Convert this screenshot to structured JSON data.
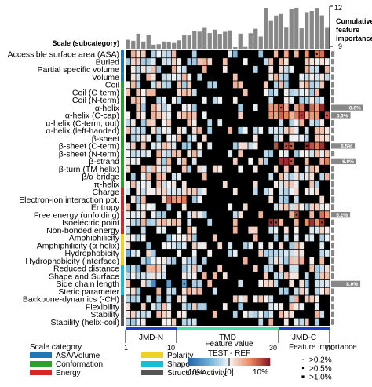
{
  "chart_data": {
    "type": "heatmap",
    "row_header": "Scale (subcategory)",
    "rows": [
      {
        "label": "Accessible surface area (ASA)",
        "cat": 0,
        "imp": 0.9
      },
      {
        "label": "Buried",
        "cat": 0,
        "imp": 0.5
      },
      {
        "label": "Partial specific volume",
        "cat": 0,
        "imp": 0.4
      },
      {
        "label": "Volume",
        "cat": 0,
        "imp": 0.7
      },
      {
        "label": "Coil",
        "cat": 1,
        "imp": 0.8
      },
      {
        "label": "Coil (C-term)",
        "cat": 1,
        "imp": 0.4
      },
      {
        "label": "Coil (N-term)",
        "cat": 1,
        "imp": 0.4
      },
      {
        "label": "α-helix",
        "cat": 1,
        "imp": 8.8,
        "pct": "8.8%"
      },
      {
        "label": "α-helix (C-cap)",
        "cat": 1,
        "imp": 5.3,
        "pct": "5.3%"
      },
      {
        "label": "α-helix (C-term, out)",
        "cat": 1,
        "imp": 0.4
      },
      {
        "label": "α-helix (left-handed)",
        "cat": 1,
        "imp": 0.3
      },
      {
        "label": "β-sheet",
        "cat": 1,
        "imp": 0.3
      },
      {
        "label": "β-sheet (C-term)",
        "cat": 1,
        "imp": 6.5,
        "pct": "6.5%"
      },
      {
        "label": "β-sheet (N-term)",
        "cat": 1,
        "imp": 0.9
      },
      {
        "label": "β-strand",
        "cat": 1,
        "imp": 6.9,
        "pct": "6.9%"
      },
      {
        "label": "β-turn (TM helix)",
        "cat": 1,
        "imp": 0.7
      },
      {
        "label": "β/α-bridge",
        "cat": 1,
        "imp": 0.3
      },
      {
        "label": "π-helix",
        "cat": 1,
        "imp": 0.4
      },
      {
        "label": "Charge",
        "cat": 2,
        "imp": 0.5
      },
      {
        "label": "Electron-ion interaction pot.",
        "cat": 2,
        "imp": 0.9
      },
      {
        "label": "Entropy",
        "cat": 2,
        "imp": 0.7
      },
      {
        "label": "Free energy (unfolding)",
        "cat": 2,
        "imp": 5.2,
        "pct": "5.2%"
      },
      {
        "label": "Isoelectric point",
        "cat": 2,
        "imp": 0.8
      },
      {
        "label": "Non-bonded energy",
        "cat": 2,
        "imp": 0.7
      },
      {
        "label": "Amphiphilicity",
        "cat": 3,
        "imp": 0.8
      },
      {
        "label": "Amphiphilicity (α-helix)",
        "cat": 3,
        "imp": 0.6
      },
      {
        "label": "Hydrophobicity",
        "cat": 3,
        "imp": 0.9
      },
      {
        "label": "Hydrophobicity (interface)",
        "cat": 3,
        "imp": 0.6
      },
      {
        "label": "Reduced distance",
        "cat": 4,
        "imp": 0.5
      },
      {
        "label": "Shape and Surface",
        "cat": 4,
        "imp": 0.7
      },
      {
        "label": "Side chain length",
        "cat": 4,
        "imp": 8.0,
        "pct": "8.0%"
      },
      {
        "label": "Steric parameter",
        "cat": 4,
        "imp": 0.4
      },
      {
        "label": "Backbone-dynamics (-CH)",
        "cat": 5,
        "imp": 0.6
      },
      {
        "label": "Flexibility",
        "cat": 5,
        "imp": 0.6
      },
      {
        "label": "Stability",
        "cat": 5,
        "imp": 0.5
      },
      {
        "label": "Stability (helix-coil)",
        "cat": 5,
        "imp": 0.4
      }
    ],
    "n_positions": 40,
    "x_ticks": [
      "1",
      "10",
      "30",
      "40"
    ],
    "segments": [
      {
        "label": "JMD-N",
        "start": 1,
        "end": 10
      },
      {
        "label": "TMD",
        "start": 11,
        "end": 30
      },
      {
        "label": "JMD-C",
        "start": 31,
        "end": 40
      }
    ],
    "top_axis": {
      "title": "Cumulative feature importance",
      "max_label": "12",
      "mid_label": "9"
    },
    "categories": [
      {
        "name": "ASA/Volume",
        "color": "#1f77b4"
      },
      {
        "name": "Conformation",
        "color": "#2ca02c"
      },
      {
        "name": "Energy",
        "color": "#d62728"
      },
      {
        "name": "Polarity",
        "color": "#f2d024"
      },
      {
        "name": "Shape",
        "color": "#17becf"
      },
      {
        "name": "Structure-Activity",
        "color": "#555555"
      }
    ],
    "legend_title": "Scale category",
    "colorbar": {
      "title": "Feature value",
      "subtitle": "TEST - REF",
      "ticks": [
        "-10%",
        "[0]",
        "10%"
      ],
      "min": -15,
      "max": 15
    },
    "importance_legend": {
      "title": "Feature importance",
      "items": [
        ">0.2%",
        ">0.5%",
        ">1.0%"
      ]
    },
    "segment_colors": {
      "jmd": "#1a3fd9",
      "tmd": "#40e0a8"
    }
  }
}
